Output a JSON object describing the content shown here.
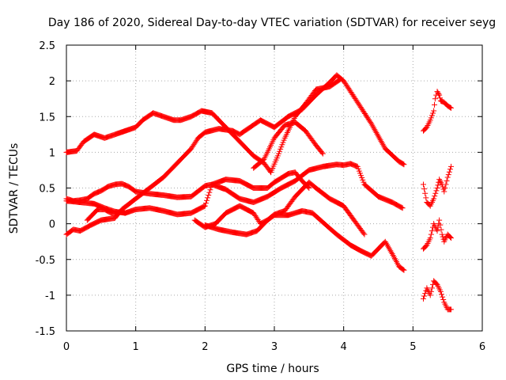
{
  "chart_data": {
    "type": "scatter",
    "title": "Day 186 of 2020, Sidereal Day-to-day VTEC variation (SDTVAR) for receiver seyg",
    "xlabel": "GPS time / hours",
    "ylabel": "SDTVAR / TECUs",
    "xlim": [
      0,
      6
    ],
    "ylim": [
      -1.5,
      2.5
    ],
    "x_ticks": [
      0,
      1,
      2,
      3,
      4,
      5,
      6
    ],
    "x_tick_labels": [
      "0",
      "1",
      "2",
      "3",
      "4",
      "5",
      "6"
    ],
    "y_ticks": [
      -1.5,
      -1,
      -0.5,
      0,
      0.5,
      1,
      1.5,
      2,
      2.5
    ],
    "y_tick_labels": [
      "-1.5",
      "-1",
      "-0.5",
      "0",
      "0.5",
      "1",
      "1.5",
      "2",
      "2.5"
    ],
    "grid": true,
    "marker": "+",
    "color": "#ff0000",
    "series": [
      {
        "name": "s1",
        "x": [
          0,
          0.15,
          0.25,
          0.4,
          0.55,
          0.7,
          0.85,
          1.0,
          1.1,
          1.25,
          1.4,
          1.55,
          1.65,
          1.8,
          1.95,
          2.1,
          2.3,
          2.5,
          2.7,
          2.85,
          2.95
        ],
        "y": [
          1.0,
          1.02,
          1.15,
          1.25,
          1.2,
          1.25,
          1.3,
          1.35,
          1.45,
          1.55,
          1.5,
          1.45,
          1.45,
          1.5,
          1.58,
          1.55,
          1.35,
          1.15,
          0.95,
          0.85,
          0.72
        ]
      },
      {
        "name": "s2",
        "x": [
          2.7,
          2.85,
          3.0,
          3.15,
          3.3,
          3.45,
          3.6,
          3.7
        ],
        "y": [
          0.78,
          0.9,
          1.2,
          1.38,
          1.42,
          1.3,
          1.1,
          0.98
        ]
      },
      {
        "name": "s3",
        "x": [
          0,
          0.2,
          0.4,
          0.55,
          0.7,
          0.85,
          1.0,
          1.2,
          1.4,
          1.6,
          1.8,
          2.0,
          2.1,
          2.3,
          2.5,
          2.7,
          2.9,
          3.0,
          3.2,
          3.3,
          3.4,
          3.5
        ],
        "y": [
          0.32,
          0.3,
          0.28,
          0.22,
          0.17,
          0.15,
          0.2,
          0.22,
          0.18,
          0.13,
          0.15,
          0.25,
          0.55,
          0.62,
          0.6,
          0.5,
          0.5,
          0.58,
          0.7,
          0.72,
          0.6,
          0.5
        ]
      },
      {
        "name": "s4",
        "x": [
          0,
          0.1,
          0.2,
          0.35,
          0.5,
          0.7,
          0.8,
          1.0,
          1.2,
          1.4,
          1.6,
          1.8,
          1.9,
          2.0,
          2.2,
          2.4,
          2.5,
          2.65,
          2.8,
          3.0,
          3.2,
          3.4,
          3.6,
          3.8,
          3.9,
          4.0,
          4.2,
          4.4,
          4.6,
          4.8,
          4.87
        ],
        "y": [
          -0.15,
          -0.08,
          -0.1,
          -0.02,
          0.05,
          0.08,
          0.2,
          0.35,
          0.5,
          0.65,
          0.85,
          1.05,
          1.2,
          1.28,
          1.33,
          1.3,
          1.25,
          1.35,
          1.45,
          1.35,
          1.5,
          1.6,
          1.8,
          1.98,
          2.08,
          2.0,
          1.7,
          1.4,
          1.05,
          0.87,
          0.83
        ]
      },
      {
        "name": "s5",
        "x": [
          2.95,
          3.05,
          3.15,
          3.3,
          3.45,
          3.6,
          3.8,
          3.95
        ],
        "y": [
          0.72,
          0.95,
          1.2,
          1.5,
          1.68,
          1.88,
          1.92,
          2.02
        ]
      },
      {
        "name": "s6",
        "x": [
          0,
          0.1,
          0.2,
          0.3,
          0.4,
          0.5,
          0.6,
          0.7,
          0.8,
          0.9,
          1.0,
          1.2,
          1.4,
          1.6,
          1.8,
          2.0,
          2.1,
          2.3,
          2.5,
          2.7,
          2.9,
          3.1,
          3.3,
          3.5,
          3.7,
          3.9,
          4.0,
          4.1,
          4.2,
          4.3,
          4.5,
          4.7,
          4.85
        ],
        "y": [
          0.35,
          0.32,
          0.33,
          0.35,
          0.42,
          0.46,
          0.52,
          0.55,
          0.56,
          0.52,
          0.45,
          0.42,
          0.4,
          0.37,
          0.38,
          0.53,
          0.55,
          0.48,
          0.35,
          0.3,
          0.38,
          0.5,
          0.6,
          0.75,
          0.8,
          0.83,
          0.82,
          0.84,
          0.8,
          0.55,
          0.38,
          0.3,
          0.22
        ]
      },
      {
        "name": "s7",
        "x": [
          0.3,
          0.45,
          0.55,
          0.65,
          0.75
        ],
        "y": [
          0.05,
          0.2,
          0.2,
          0.15,
          0.15
        ]
      },
      {
        "name": "s8",
        "x": [
          1.85,
          2.0,
          2.15,
          2.3,
          2.5,
          2.7,
          2.8,
          2.9,
          3.0,
          3.15,
          3.3,
          3.5,
          3.6,
          3.8,
          4.0,
          4.15,
          4.3
        ],
        "y": [
          0.05,
          -0.05,
          0.0,
          0.15,
          0.25,
          0.15,
          0.0,
          0.05,
          0.13,
          0.18,
          0.38,
          0.58,
          0.5,
          0.35,
          0.25,
          0.05,
          -0.15
        ]
      },
      {
        "name": "s9",
        "x": [
          2.0,
          2.2,
          2.4,
          2.6,
          2.75,
          2.9,
          3.0,
          3.2,
          3.4,
          3.55,
          3.7,
          3.9,
          4.1,
          4.25,
          4.4,
          4.55,
          4.6,
          4.7,
          4.8,
          4.87
        ],
        "y": [
          -0.02,
          -0.08,
          -0.12,
          -0.15,
          -0.1,
          0.05,
          0.12,
          0.12,
          0.18,
          0.15,
          0.02,
          -0.15,
          -0.3,
          -0.38,
          -0.45,
          -0.3,
          -0.25,
          -0.42,
          -0.6,
          -0.65
        ]
      },
      {
        "name": "s10",
        "x": [
          5.15,
          5.2,
          5.25,
          5.3,
          5.32,
          5.35,
          5.38,
          5.4,
          5.45,
          5.5,
          5.55
        ],
        "y": [
          1.3,
          1.35,
          1.45,
          1.58,
          1.75,
          1.85,
          1.8,
          1.72,
          1.7,
          1.65,
          1.62
        ]
      },
      {
        "name": "s11",
        "x": [
          5.15,
          5.2,
          5.25,
          5.3,
          5.35,
          5.38,
          5.42,
          5.45,
          5.5,
          5.55
        ],
        "y": [
          0.55,
          0.3,
          0.25,
          0.35,
          0.5,
          0.62,
          0.55,
          0.45,
          0.65,
          0.8
        ]
      },
      {
        "name": "s12",
        "x": [
          5.15,
          5.2,
          5.25,
          5.3,
          5.35,
          5.38,
          5.42,
          5.45,
          5.5,
          5.55
        ],
        "y": [
          -0.35,
          -0.3,
          -0.2,
          0.0,
          -0.1,
          0.05,
          -0.15,
          -0.25,
          -0.15,
          -0.2
        ]
      },
      {
        "name": "s13",
        "x": [
          5.15,
          5.2,
          5.25,
          5.3,
          5.35,
          5.4,
          5.45,
          5.5,
          5.55
        ],
        "y": [
          -1.05,
          -0.9,
          -1.0,
          -0.8,
          -0.85,
          -0.95,
          -1.1,
          -1.2,
          -1.2
        ]
      }
    ]
  }
}
